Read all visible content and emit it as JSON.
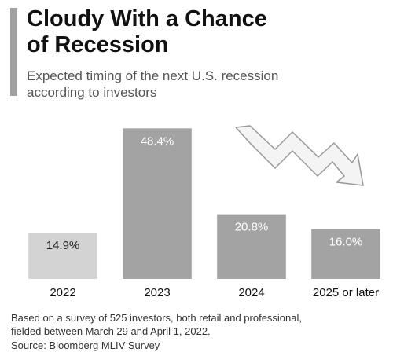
{
  "chart_data": {
    "type": "bar",
    "title": "Cloudy With a Chance of Recession",
    "subtitle": "Expected timing of the next U.S. recession according to investors",
    "categories": [
      "2022",
      "2023",
      "2024",
      "2025 or later"
    ],
    "values": [
      14.9,
      48.4,
      20.8,
      16.0
    ],
    "value_labels": [
      "14.9%",
      "48.4%",
      "20.8%",
      "16.0%"
    ],
    "colors": [
      "#d3d3d3",
      "#a3a3a3",
      "#a3a3a3",
      "#a3a3a3"
    ],
    "ylim": [
      0,
      50
    ],
    "note": "Based on a survey of 525 investors, both retail and professional, fielded between March 29 and April 1, 2022.",
    "source": "Source: Bloomberg MLIV Survey"
  }
}
